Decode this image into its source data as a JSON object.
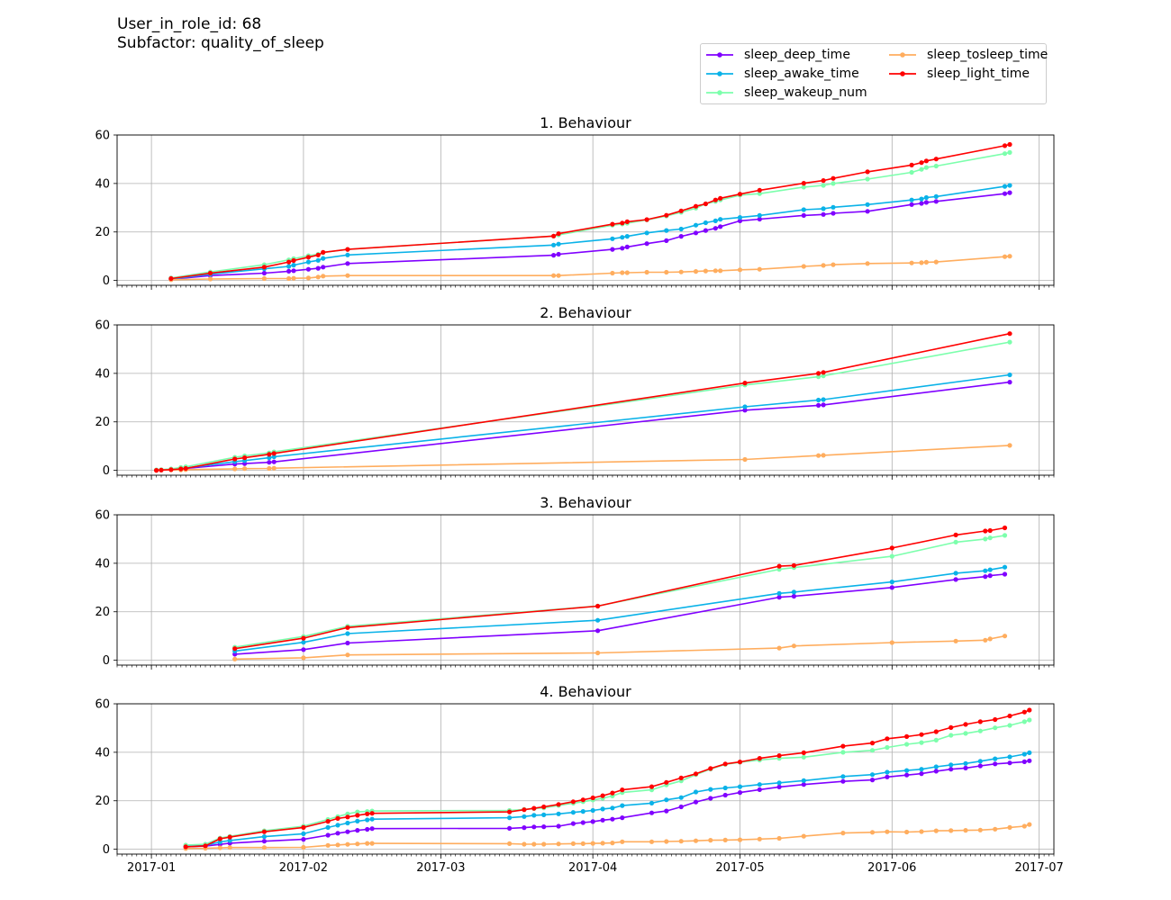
{
  "header": {
    "line1": "User_in_role_id: 68",
    "line2": "Subfactor: quality_of_sleep"
  },
  "chart_data": {
    "type": "line",
    "x_axis": {
      "type": "date",
      "min": "2016-12-25",
      "max": "2017-07-04",
      "tick_labels": [
        "2017-01",
        "2017-02",
        "2017-03",
        "2017-04",
        "2017-05",
        "2017-06",
        "2017-07"
      ],
      "tick_dates": [
        "2017-01-01",
        "2017-02-01",
        "2017-03-01",
        "2017-04-01",
        "2017-05-01",
        "2017-06-01",
        "2017-07-01"
      ],
      "minor_ticks": "daily"
    },
    "y_axis": {
      "ylim": [
        -2,
        60
      ],
      "ticks": [
        0,
        20,
        40,
        60
      ]
    },
    "grid": true,
    "legend": {
      "placement": "top-right",
      "columns": 2,
      "entries": [
        {
          "name": "sleep_deep_time",
          "color": "#8000ff"
        },
        {
          "name": "sleep_awake_time",
          "color": "#0ab2e8"
        },
        {
          "name": "sleep_wakeup_num",
          "color": "#7cffac"
        },
        {
          "name": "sleep_tosleep_time",
          "color": "#ffad5e"
        },
        {
          "name": "sleep_light_time",
          "color": "#ff0000"
        }
      ]
    },
    "panels": [
      {
        "title": "1. Behaviour",
        "x": [
          "2017-01-05",
          "2017-01-13",
          "2017-01-24",
          "2017-01-29",
          "2017-01-30",
          "2017-02-02",
          "2017-02-04",
          "2017-02-05",
          "2017-02-10",
          "2017-03-24",
          "2017-03-25",
          "2017-04-05",
          "2017-04-07",
          "2017-04-08",
          "2017-04-12",
          "2017-04-16",
          "2017-04-19",
          "2017-04-22",
          "2017-04-24",
          "2017-04-26",
          "2017-04-27",
          "2017-05-01",
          "2017-05-05",
          "2017-05-14",
          "2017-05-18",
          "2017-05-20",
          "2017-05-27",
          "2017-06-05",
          "2017-06-07",
          "2017-06-08",
          "2017-06-10",
          "2017-06-24",
          "2017-06-25"
        ],
        "series": [
          {
            "name": "sleep_deep_time",
            "values": [
              0.5,
              2,
              3,
              3.8,
              4,
              4.6,
              5,
              5.5,
              7,
              10.4,
              10.8,
              12.8,
              13.3,
              13.8,
              15.2,
              16.4,
              18.2,
              19.6,
              20.6,
              21.5,
              22.2,
              24.6,
              25.3,
              26.8,
              27.2,
              27.7,
              28.5,
              31.3,
              31.8,
              32.2,
              32.6,
              35.8,
              36.2
            ]
          },
          {
            "name": "sleep_awake_time",
            "values": [
              0.6,
              2.6,
              4.8,
              5.8,
              6.3,
              7.6,
              8.3,
              9.1,
              10.5,
              14.6,
              15,
              17.2,
              17.8,
              18.2,
              19.6,
              20.6,
              21.2,
              22.8,
              23.8,
              24.6,
              25.2,
              26,
              26.8,
              29.2,
              29.6,
              30.2,
              31.3,
              33.2,
              33.6,
              34.2,
              34.6,
              38.8,
              39.2
            ]
          },
          {
            "name": "sleep_wakeup_num",
            "values": [
              1,
              3.5,
              6.5,
              8.5,
              9,
              10.2,
              10.8,
              11.5,
              12.8,
              18.3,
              18.8,
              22.8,
              23.3,
              23.6,
              25,
              26.6,
              28.1,
              29.8,
              31.6,
              32.6,
              33.2,
              35.2,
              35.8,
              38.5,
              39.2,
              40,
              41.8,
              44.6,
              45.8,
              46.6,
              47.2,
              52.3,
              52.8
            ]
          },
          {
            "name": "sleep_tosleep_time",
            "values": [
              0.3,
              0.6,
              0.8,
              0.8,
              0.9,
              1,
              1.4,
              1.8,
              2,
              2,
              2,
              3,
              3.2,
              3.2,
              3.4,
              3.4,
              3.5,
              3.7,
              3.9,
              4,
              4,
              4.4,
              4.6,
              5.8,
              6.2,
              6.5,
              7,
              7.2,
              7.3,
              7.5,
              7.6,
              9.8,
              10
            ]
          },
          {
            "name": "sleep_light_time",
            "values": [
              0.8,
              3,
              5.5,
              7.6,
              8.2,
              9.6,
              10.5,
              11.6,
              12.8,
              18.3,
              19.3,
              23.2,
              23.7,
              24.2,
              25.1,
              26.9,
              28.7,
              30.6,
              31.6,
              33.2,
              33.9,
              35.6,
              37.2,
              40.1,
              41.2,
              42.1,
              44.8,
              47.6,
              48.6,
              49.3,
              50.1,
              55.6,
              56.1
            ]
          }
        ]
      },
      {
        "title": "2. Behaviour",
        "x": [
          "2017-01-02",
          "2017-01-03",
          "2017-01-05",
          "2017-01-07",
          "2017-01-08",
          "2017-01-18",
          "2017-01-20",
          "2017-01-25",
          "2017-01-26",
          "2017-05-02",
          "2017-05-17",
          "2017-05-18",
          "2017-06-25"
        ],
        "series": [
          {
            "name": "sleep_deep_time",
            "values": [
              0.1,
              0.2,
              0.4,
              0.6,
              0.8,
              2.6,
              2.8,
              3.3,
              3.5,
              24.8,
              26.8,
              27,
              36.4
            ]
          },
          {
            "name": "sleep_awake_time",
            "values": [
              0.1,
              0.2,
              0.5,
              0.8,
              1,
              3.6,
              4,
              5.2,
              5.6,
              26.2,
              29,
              29.2,
              39.4
            ]
          },
          {
            "name": "sleep_wakeup_num",
            "values": [
              0.2,
              0.3,
              0.6,
              1.2,
              1.5,
              5.4,
              6,
              7.2,
              7.6,
              35.2,
              38.6,
              39,
              52.9
            ]
          },
          {
            "name": "sleep_tosleep_time",
            "values": [
              0,
              0.1,
              0.2,
              0.2,
              0.3,
              0.6,
              0.7,
              0.8,
              0.9,
              4.5,
              6.1,
              6.2,
              10.3
            ]
          },
          {
            "name": "sleep_light_time",
            "values": [
              0,
              0.1,
              0.3,
              0.6,
              0.8,
              4.7,
              5.2,
              6.6,
              7,
              36,
              40,
              40.4,
              56.4
            ]
          }
        ]
      },
      {
        "title": "3. Behaviour",
        "x": [
          "2017-01-18",
          "2017-02-01",
          "2017-02-10",
          "2017-04-02",
          "2017-05-09",
          "2017-05-12",
          "2017-06-01",
          "2017-06-14",
          "2017-06-20",
          "2017-06-21",
          "2017-06-24"
        ],
        "series": [
          {
            "name": "sleep_deep_time",
            "values": [
              2.5,
              4.4,
              7.1,
              12.2,
              26,
              26.4,
              30,
              33.3,
              34.5,
              34.9,
              35.5
            ]
          },
          {
            "name": "sleep_awake_time",
            "values": [
              3.8,
              7.4,
              11,
              16.5,
              27.6,
              28.1,
              32.3,
              35.9,
              36.9,
              37.3,
              38.4
            ]
          },
          {
            "name": "sleep_wakeup_num",
            "values": [
              5.4,
              9.8,
              14,
              22.4,
              37.5,
              38.2,
              42.9,
              48.7,
              50,
              50.5,
              51.5
            ]
          },
          {
            "name": "sleep_tosleep_time",
            "values": [
              0.5,
              1,
              2.2,
              3,
              5,
              5.9,
              7.3,
              7.9,
              8.3,
              8.8,
              10
            ]
          },
          {
            "name": "sleep_light_time",
            "values": [
              4.8,
              9.1,
              13.5,
              22.3,
              38.8,
              39.1,
              46.3,
              51.7,
              53.3,
              53.5,
              54.6
            ]
          }
        ]
      },
      {
        "title": "4. Behaviour",
        "x": [
          "2017-01-08",
          "2017-01-12",
          "2017-01-15",
          "2017-01-17",
          "2017-01-24",
          "2017-02-01",
          "2017-02-06",
          "2017-02-08",
          "2017-02-10",
          "2017-02-12",
          "2017-02-14",
          "2017-02-15",
          "2017-03-15",
          "2017-03-18",
          "2017-03-20",
          "2017-03-22",
          "2017-03-25",
          "2017-03-28",
          "2017-03-30",
          "2017-04-01",
          "2017-04-03",
          "2017-04-05",
          "2017-04-07",
          "2017-04-13",
          "2017-04-16",
          "2017-04-19",
          "2017-04-22",
          "2017-04-25",
          "2017-04-28",
          "2017-05-01",
          "2017-05-05",
          "2017-05-09",
          "2017-05-14",
          "2017-05-22",
          "2017-05-28",
          "2017-05-31",
          "2017-06-04",
          "2017-06-07",
          "2017-06-10",
          "2017-06-13",
          "2017-06-16",
          "2017-06-19",
          "2017-06-22",
          "2017-06-25",
          "2017-06-28",
          "2017-06-29"
        ],
        "series": [
          {
            "name": "sleep_deep_time",
            "values": [
              1,
              1.3,
              2,
              2.5,
              3.3,
              4.1,
              5.8,
              6.6,
              7.2,
              7.8,
              8.2,
              8.5,
              8.6,
              8.9,
              9.2,
              9.3,
              9.5,
              10.6,
              11,
              11.4,
              12,
              12.4,
              13,
              15,
              15.8,
              17.5,
              19.5,
              21,
              22.3,
              23.4,
              24.6,
              25.7,
              26.7,
              28,
              28.6,
              29.8,
              30.6,
              31.2,
              32.2,
              33,
              33.5,
              34.4,
              35.2,
              35.6,
              36.1,
              36.5
            ]
          },
          {
            "name": "sleep_awake_time",
            "values": [
              1.2,
              1.6,
              3,
              3.6,
              5.2,
              6.4,
              9,
              9.9,
              10.8,
              11.6,
              12.1,
              12.4,
              13,
              13.5,
              14,
              14.2,
              14.6,
              15.2,
              15.6,
              16,
              16.6,
              17,
              18,
              19,
              20.4,
              21.3,
              23.6,
              24.7,
              25.3,
              25.8,
              26.7,
              27.4,
              28.3,
              30,
              30.8,
              31.8,
              32.5,
              33,
              34,
              34.8,
              35.4,
              36.3,
              37.3,
              38.1,
              39.2,
              39.8
            ]
          },
          {
            "name": "sleep_wakeup_num",
            "values": [
              1.7,
              2.1,
              4.6,
              5.3,
              7.6,
              9.5,
              12.3,
              13.5,
              14.6,
              15.4,
              15.6,
              15.8,
              16,
              16.4,
              16.8,
              17.1,
              18.1,
              19,
              19.6,
              20.3,
              21,
              22,
              23.4,
              24.5,
              26.5,
              28.2,
              30.8,
              33.1,
              35,
              35.9,
              36.8,
              37.5,
              38,
              40,
              40.8,
              42,
              43.3,
              44,
              45,
              47,
              47.8,
              48.8,
              50.1,
              51.1,
              52.6,
              53.3
            ]
          },
          {
            "name": "sleep_tosleep_time",
            "values": [
              0.3,
              0.4,
              0.6,
              0.7,
              0.7,
              0.8,
              1.6,
              1.8,
              2,
              2.2,
              2.4,
              2.4,
              2.3,
              2.1,
              2.1,
              2.1,
              2.2,
              2.3,
              2.3,
              2.4,
              2.5,
              2.6,
              3.1,
              3.1,
              3.2,
              3.3,
              3.5,
              3.7,
              3.8,
              3.9,
              4.2,
              4.5,
              5.4,
              6.7,
              7,
              7.2,
              7.1,
              7.3,
              7.6,
              7.7,
              7.8,
              7.9,
              8.3,
              9,
              9.5,
              10.2
            ]
          },
          {
            "name": "sleep_light_time",
            "values": [
              1,
              1.4,
              4.3,
              5,
              7.2,
              9,
              11.5,
              12.7,
              13.3,
              14,
              14.6,
              14.8,
              15.4,
              16.3,
              16.9,
              17.5,
              18.5,
              19.6,
              20.4,
              21.2,
              22.1,
              23.2,
              24.5,
              25.8,
              27.6,
              29.4,
              31.1,
              33.3,
              35.2,
              36,
              37.5,
              38.6,
              39.8,
              42.5,
              43.8,
              45.6,
              46.5,
              47.3,
              48.5,
              50.2,
              51.5,
              52.6,
              53.5,
              55,
              56.6,
              57.4
            ]
          }
        ]
      }
    ]
  }
}
